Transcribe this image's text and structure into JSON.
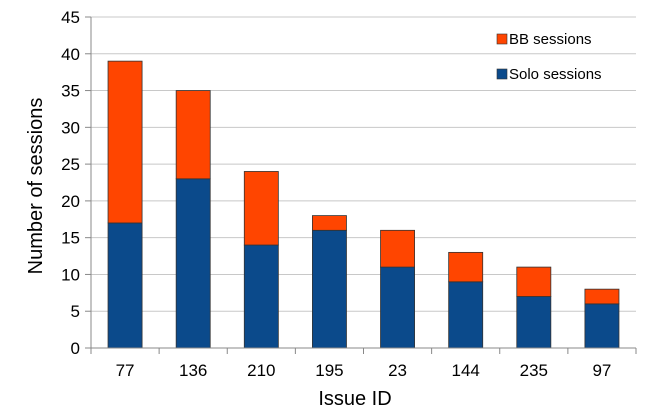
{
  "chart_data": {
    "type": "bar",
    "stacked": true,
    "categories": [
      "77",
      "136",
      "210",
      "195",
      "23",
      "144",
      "235",
      "97"
    ],
    "series": [
      {
        "name": "Solo sessions",
        "values": [
          17,
          23,
          14,
          16,
          11,
          9,
          7,
          6
        ],
        "color": "#0b4a8b"
      },
      {
        "name": "BB sessions",
        "values": [
          22,
          12,
          10,
          2,
          5,
          4,
          4,
          2
        ],
        "color": "#ff4500"
      }
    ],
    "title": "",
    "xlabel": "Issue ID",
    "ylabel": "Number of sessions",
    "ylim": [
      0,
      45
    ],
    "yticks": [
      0,
      5,
      10,
      15,
      20,
      25,
      30,
      35,
      40,
      45
    ],
    "grid": true,
    "legend_position": "top-right"
  }
}
